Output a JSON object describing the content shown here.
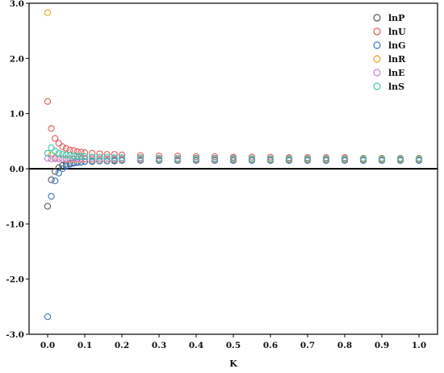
{
  "chart_data": {
    "type": "scatter",
    "xlabel": "K",
    "ylabel": "",
    "xlim": [
      -0.05,
      1.05
    ],
    "ylim": [
      -3.0,
      3.0
    ],
    "x_ticks": [
      "0.0",
      "0.1",
      "0.2",
      "0.3",
      "0.4",
      "0.5",
      "0.6",
      "0.7",
      "0.8",
      "0.9",
      "1.0"
    ],
    "y_ticks": [
      "3.0",
      "2.0",
      "1.0",
      "0.0",
      "-1.0",
      "-2.0",
      "-3.0"
    ],
    "x_tick_values": [
      0.0,
      0.1,
      0.2,
      0.3,
      0.4,
      0.5,
      0.6,
      0.7,
      0.8,
      0.9,
      1.0
    ],
    "y_tick_values": [
      3.0,
      2.0,
      1.0,
      0.0,
      -1.0,
      -2.0,
      -3.0
    ],
    "zero_line": true,
    "grid": false,
    "legend_position": "top-right",
    "marker": "open-circle",
    "x": [
      0.0,
      0.01,
      0.02,
      0.03,
      0.04,
      0.05,
      0.06,
      0.07,
      0.08,
      0.09,
      0.1,
      0.12,
      0.14,
      0.16,
      0.18,
      0.2,
      0.25,
      0.3,
      0.35,
      0.4,
      0.45,
      0.5,
      0.55,
      0.6,
      0.65,
      0.7,
      0.75,
      0.8,
      0.85,
      0.9,
      0.95,
      1.0
    ],
    "series": [
      {
        "name": "lnP",
        "color": "#555555",
        "values": [
          -0.68,
          -0.2,
          -0.05,
          0.02,
          0.06,
          0.08,
          0.1,
          0.11,
          0.12,
          0.12,
          0.13,
          0.13,
          0.14,
          0.14,
          0.14,
          0.15,
          0.15,
          0.15,
          0.15,
          0.15,
          0.15,
          0.15,
          0.15,
          0.15,
          0.15,
          0.15,
          0.15,
          0.15,
          0.15,
          0.15,
          0.15,
          0.15
        ]
      },
      {
        "name": "lnU",
        "color": "#e05a5a",
        "values": [
          1.22,
          0.73,
          0.55,
          0.46,
          0.4,
          0.37,
          0.34,
          0.33,
          0.31,
          0.3,
          0.29,
          0.28,
          0.27,
          0.26,
          0.26,
          0.25,
          0.24,
          0.23,
          0.23,
          0.22,
          0.22,
          0.21,
          0.21,
          0.21,
          0.2,
          0.2,
          0.2,
          0.2,
          0.19,
          0.19,
          0.19,
          0.19
        ]
      },
      {
        "name": "lnG",
        "color": "#3b78c9",
        "values": [
          -2.68,
          -0.5,
          -0.22,
          -0.08,
          0.0,
          0.05,
          0.08,
          0.1,
          0.11,
          0.12,
          0.13,
          0.14,
          0.14,
          0.14,
          0.15,
          0.15,
          0.15,
          0.15,
          0.15,
          0.15,
          0.15,
          0.15,
          0.15,
          0.15,
          0.15,
          0.15,
          0.15,
          0.15,
          0.15,
          0.15,
          0.15,
          0.15
        ]
      },
      {
        "name": "lnR",
        "color": "#f0a01e",
        "values": [
          2.83,
          0.25,
          0.2,
          0.18,
          0.18,
          0.17,
          0.17,
          0.17,
          0.17,
          0.17,
          0.17,
          0.17,
          0.17,
          0.17,
          0.17,
          0.17,
          0.17,
          0.17,
          0.17,
          0.17,
          0.17,
          0.17,
          0.17,
          0.17,
          0.17,
          0.17,
          0.17,
          0.17,
          0.17,
          0.17,
          0.17,
          0.17
        ]
      },
      {
        "name": "lnE",
        "color": "#c77fd6",
        "values": [
          0.19,
          0.18,
          0.18,
          0.18,
          0.18,
          0.18,
          0.18,
          0.18,
          0.18,
          0.18,
          0.18,
          0.18,
          0.18,
          0.18,
          0.18,
          0.18,
          0.18,
          0.18,
          0.18,
          0.18,
          0.18,
          0.18,
          0.18,
          0.18,
          0.18,
          0.18,
          0.18,
          0.18,
          0.18,
          0.18,
          0.18,
          0.18
        ]
      },
      {
        "name": "lnS",
        "color": "#3ec9a7",
        "values": [
          0.28,
          0.38,
          0.32,
          0.28,
          0.26,
          0.25,
          0.24,
          0.23,
          0.23,
          0.22,
          0.22,
          0.21,
          0.21,
          0.21,
          0.2,
          0.2,
          0.2,
          0.19,
          0.19,
          0.19,
          0.19,
          0.19,
          0.18,
          0.18,
          0.18,
          0.18,
          0.18,
          0.18,
          0.18,
          0.18,
          0.18,
          0.18
        ]
      }
    ]
  }
}
